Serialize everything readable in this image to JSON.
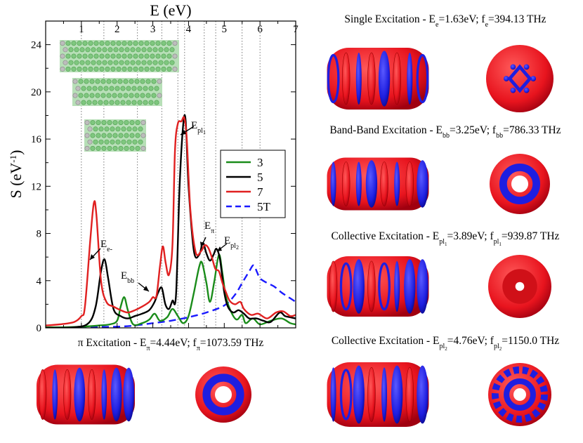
{
  "chart_data": {
    "type": "line",
    "title": "",
    "xlabel": "E (eV)",
    "ylabel": "S (eV",
    "ylabel_sup": "-1",
    "ylabel_close": ")",
    "xlim": [
      0,
      7
    ],
    "ylim": [
      0,
      26
    ],
    "xticks": [
      1,
      2,
      3,
      4,
      5,
      6,
      7
    ],
    "yticks": [
      0,
      4,
      8,
      12,
      16,
      20,
      24
    ],
    "grid": "vertical dotted lines at peak energies",
    "vlines": [
      1.0,
      1.63,
      2.57,
      3.25,
      3.7,
      3.89,
      4.44,
      4.76,
      5.5,
      6.0
    ],
    "legend": {
      "placement": "center-right",
      "entries": [
        "3",
        "5",
        "7",
        "5T"
      ]
    },
    "series": [
      {
        "name": "3",
        "color": "#1a8c1a",
        "dash": "solid",
        "points": [
          [
            0,
            0.05
          ],
          [
            0.5,
            0.05
          ],
          [
            1.0,
            0.1
          ],
          [
            1.5,
            0.2
          ],
          [
            1.8,
            0.3
          ],
          [
            2.0,
            0.6
          ],
          [
            2.1,
            1.8
          ],
          [
            2.2,
            2.6
          ],
          [
            2.3,
            1.5
          ],
          [
            2.45,
            0.3
          ],
          [
            2.7,
            0.4
          ],
          [
            2.9,
            0.7
          ],
          [
            3.05,
            1.2
          ],
          [
            3.2,
            0.6
          ],
          [
            3.4,
            0.9
          ],
          [
            3.55,
            1.6
          ],
          [
            3.7,
            1.0
          ],
          [
            3.85,
            0.4
          ],
          [
            4.0,
            1.0
          ],
          [
            4.15,
            3.0
          ],
          [
            4.3,
            5.2
          ],
          [
            4.38,
            5.5
          ],
          [
            4.5,
            3.8
          ],
          [
            4.6,
            2.2
          ],
          [
            4.72,
            3.9
          ],
          [
            4.85,
            6.2
          ],
          [
            4.95,
            4.6
          ],
          [
            5.05,
            2.6
          ],
          [
            5.2,
            1.3
          ],
          [
            5.35,
            0.7
          ],
          [
            5.5,
            1.1
          ],
          [
            5.6,
            0.4
          ],
          [
            5.8,
            0.8
          ],
          [
            6.0,
            0.3
          ],
          [
            6.3,
            0.6
          ],
          [
            6.6,
            0.8
          ],
          [
            6.85,
            0.4
          ],
          [
            7.0,
            0.3
          ]
        ]
      },
      {
        "name": "5",
        "color": "#000000",
        "dash": "solid",
        "points": [
          [
            0,
            0.0
          ],
          [
            0.8,
            0.05
          ],
          [
            1.2,
            0.4
          ],
          [
            1.4,
            1.8
          ],
          [
            1.55,
            4.8
          ],
          [
            1.65,
            5.8
          ],
          [
            1.75,
            4.2
          ],
          [
            1.9,
            1.6
          ],
          [
            2.1,
            1.0
          ],
          [
            2.3,
            0.8
          ],
          [
            2.5,
            1.0
          ],
          [
            2.7,
            1.2
          ],
          [
            2.9,
            1.5
          ],
          [
            3.05,
            2.2
          ],
          [
            3.15,
            3.0
          ],
          [
            3.25,
            3.4
          ],
          [
            3.35,
            2.0
          ],
          [
            3.45,
            1.6
          ],
          [
            3.55,
            2.3
          ],
          [
            3.65,
            2.8
          ],
          [
            3.75,
            12.0
          ],
          [
            3.85,
            17.2
          ],
          [
            3.92,
            17.5
          ],
          [
            4.0,
            12.0
          ],
          [
            4.15,
            6.5
          ],
          [
            4.3,
            6.2
          ],
          [
            4.4,
            7.2
          ],
          [
            4.5,
            6.3
          ],
          [
            4.6,
            5.7
          ],
          [
            4.7,
            6.2
          ],
          [
            4.78,
            6.7
          ],
          [
            4.88,
            5.8
          ],
          [
            5.0,
            3.0
          ],
          [
            5.1,
            1.8
          ],
          [
            5.25,
            1.3
          ],
          [
            5.4,
            1.5
          ],
          [
            5.55,
            1.2
          ],
          [
            5.7,
            0.8
          ],
          [
            5.9,
            0.8
          ],
          [
            6.1,
            0.6
          ],
          [
            6.3,
            0.5
          ],
          [
            6.55,
            1.3
          ],
          [
            6.7,
            1.0
          ],
          [
            6.85,
            0.9
          ],
          [
            7.0,
            0.8
          ]
        ]
      },
      {
        "name": "7",
        "color": "#e02020",
        "dash": "solid",
        "points": [
          [
            0,
            0.2
          ],
          [
            0.4,
            0.3
          ],
          [
            0.8,
            0.5
          ],
          [
            1.0,
            1.0
          ],
          [
            1.1,
            1.8
          ],
          [
            1.25,
            7.5
          ],
          [
            1.35,
            10.6
          ],
          [
            1.42,
            9.6
          ],
          [
            1.55,
            4.0
          ],
          [
            1.7,
            2.2
          ],
          [
            1.9,
            1.8
          ],
          [
            2.1,
            1.5
          ],
          [
            2.3,
            1.3
          ],
          [
            2.5,
            1.5
          ],
          [
            2.7,
            1.8
          ],
          [
            2.9,
            2.2
          ],
          [
            3.0,
            2.6
          ],
          [
            3.1,
            2.7
          ],
          [
            3.2,
            5.2
          ],
          [
            3.28,
            6.9
          ],
          [
            3.36,
            5.5
          ],
          [
            3.45,
            4.5
          ],
          [
            3.55,
            7.0
          ],
          [
            3.62,
            15.0
          ],
          [
            3.7,
            17.3
          ],
          [
            3.8,
            17.5
          ],
          [
            3.88,
            17.8
          ],
          [
            3.95,
            16.0
          ],
          [
            4.05,
            10.0
          ],
          [
            4.2,
            6.4
          ],
          [
            4.35,
            6.5
          ],
          [
            4.45,
            7.0
          ],
          [
            4.55,
            6.8
          ],
          [
            4.65,
            6.0
          ],
          [
            4.75,
            5.0
          ],
          [
            4.85,
            4.8
          ],
          [
            4.95,
            3.8
          ],
          [
            5.05,
            3.0
          ],
          [
            5.15,
            2.3
          ],
          [
            5.3,
            2.0
          ],
          [
            5.45,
            2.2
          ],
          [
            5.55,
            1.6
          ],
          [
            5.75,
            1.1
          ],
          [
            5.95,
            1.2
          ],
          [
            6.2,
            0.8
          ],
          [
            6.45,
            1.3
          ],
          [
            6.65,
            1.4
          ],
          [
            6.85,
            1.0
          ],
          [
            7.0,
            1.1
          ]
        ]
      },
      {
        "name": "5T",
        "color": "#1a1aff",
        "dash": "dashed",
        "points": [
          [
            0,
            0.0
          ],
          [
            1.0,
            0.05
          ],
          [
            2.0,
            0.1
          ],
          [
            2.5,
            0.2
          ],
          [
            3.0,
            0.4
          ],
          [
            3.5,
            0.6
          ],
          [
            4.0,
            0.9
          ],
          [
            4.5,
            1.3
          ],
          [
            5.0,
            1.9
          ],
          [
            5.3,
            2.8
          ],
          [
            5.5,
            3.8
          ],
          [
            5.7,
            4.8
          ],
          [
            5.82,
            5.3
          ],
          [
            5.92,
            4.7
          ],
          [
            6.0,
            4.2
          ],
          [
            6.2,
            3.8
          ],
          [
            6.4,
            3.5
          ],
          [
            6.6,
            3.0
          ],
          [
            6.8,
            2.6
          ],
          [
            7.0,
            2.2
          ]
        ]
      }
    ],
    "annotations": [
      {
        "label": "E",
        "sub": "e-"
      },
      {
        "label": "E",
        "sub": "bb"
      },
      {
        "label": "E",
        "sub": "pl",
        "subsub": "1"
      },
      {
        "label": "E",
        "sub": "π"
      },
      {
        "label": "E",
        "sub": "pl",
        "subsub": "2"
      }
    ]
  },
  "panels": {
    "single": {
      "prefix": "Single Excitation - E",
      "esub": "e",
      "mid": "=1.63eV; f",
      "fsub": "e",
      "tail": "=394.13 THz"
    },
    "bandband": {
      "prefix": "Band-Band Excitation - E",
      "esub": "bb",
      "mid": "=3.25eV; f",
      "fsub": "bb",
      "tail": "=786.33 THz"
    },
    "collective1": {
      "prefix": "Collective Excitation - E",
      "esub": "pl",
      "esubsub": "1",
      "mid": "=3.89eV; f",
      "fsub": "pl",
      "fsubsub": "1",
      "tail": "=939.87 THz"
    },
    "collective2": {
      "prefix": "Collective Excitation - E",
      "esub": "pl",
      "esubsub": "2",
      "mid": "=4.76eV; f",
      "fsub": "pl",
      "fsubsub": "2",
      "tail": "=1150.0 THz"
    },
    "pi": {
      "prefix": "π Excitation - E",
      "esub": "π",
      "mid": "=4.44eV; f",
      "fsub": "π",
      "tail": "=1073.59 THz"
    }
  },
  "colors": {
    "red": "#e8141e",
    "blue": "#2020e0",
    "green": "#8dd08d",
    "grey": "#c8c8c8"
  }
}
